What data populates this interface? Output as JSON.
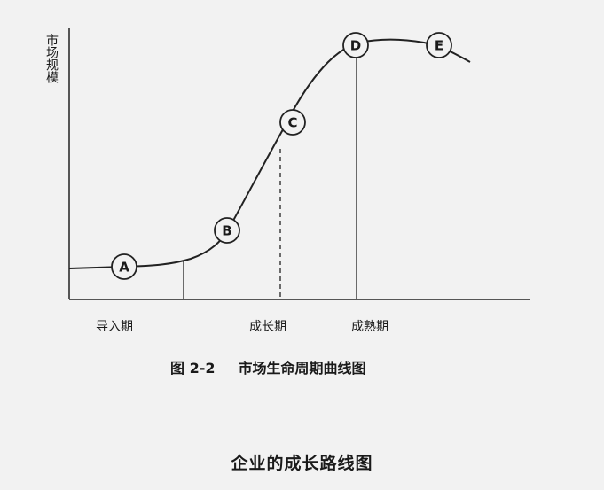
{
  "diagram": {
    "y_axis_label": "市场规模",
    "stages": [
      "导入期",
      "成长期",
      "成熟期"
    ],
    "markers": [
      "A",
      "B",
      "C",
      "D",
      "E"
    ],
    "figure_caption": {
      "number": "图 2-2",
      "text": "市场生命周期曲线图"
    },
    "title": "企业的成长路线图"
  }
}
